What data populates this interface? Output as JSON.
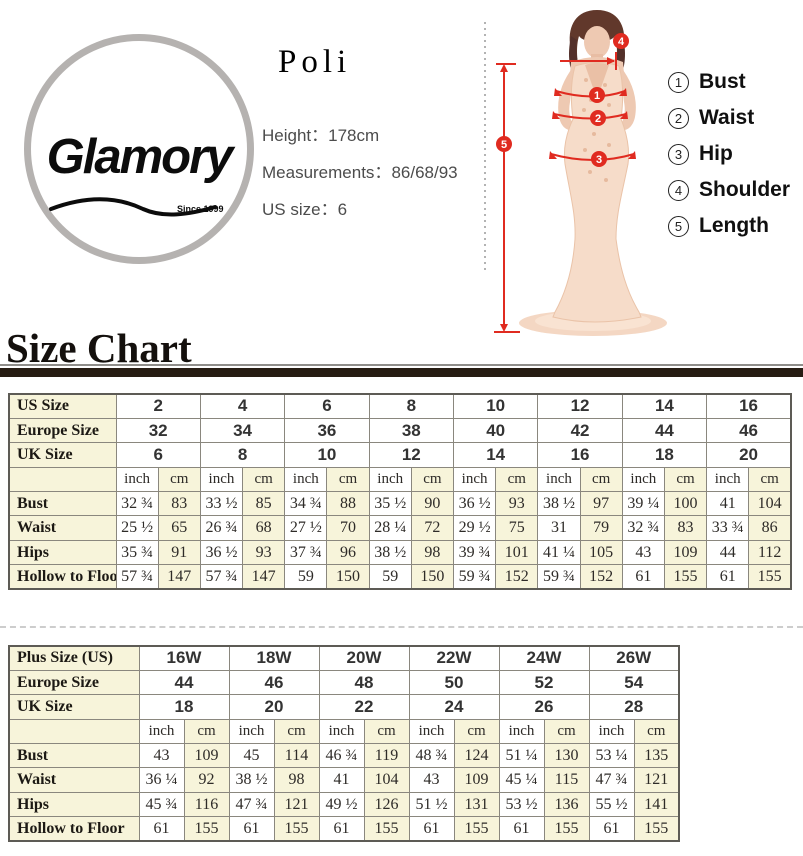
{
  "brand": {
    "name": "Glamory",
    "since": "Since 1999"
  },
  "product": {
    "name": "Poli",
    "height_label": "Height：",
    "height_value": "178cm",
    "measurements_label": "Measurements：",
    "measurements_value": "86/68/93",
    "us_size_label": "US size：",
    "us_size_value": "6"
  },
  "legend": {
    "items": [
      {
        "num": "1",
        "label": "Bust"
      },
      {
        "num": "2",
        "label": "Waist"
      },
      {
        "num": "3",
        "label": "Hip"
      },
      {
        "num": "4",
        "label": "Shoulder"
      },
      {
        "num": "5",
        "label": "Length"
      }
    ]
  },
  "model": {
    "markers": {
      "bust": "1",
      "waist": "2",
      "hip": "3",
      "shoulder": "4",
      "length": "5"
    }
  },
  "section_title": "Size Chart",
  "colors": {
    "accent_red": "#e02b20",
    "cream": "#f7f4da",
    "bar_dark": "#271c13"
  },
  "units": [
    "inch",
    "cm"
  ],
  "table1": {
    "header_rows": [
      {
        "label": "US Size",
        "values": [
          "2",
          "4",
          "6",
          "8",
          "10",
          "12",
          "14",
          "16"
        ]
      },
      {
        "label": "Europe Size",
        "values": [
          "32",
          "34",
          "36",
          "38",
          "40",
          "42",
          "44",
          "46"
        ]
      },
      {
        "label": "UK Size",
        "values": [
          "6",
          "8",
          "10",
          "12",
          "14",
          "16",
          "18",
          "20"
        ]
      }
    ],
    "rows": [
      {
        "label": "Bust",
        "values": [
          "32 ¾",
          "83",
          "33 ½",
          "85",
          "34 ¾",
          "88",
          "35 ½",
          "90",
          "36 ½",
          "93",
          "38 ½",
          "97",
          "39 ¼",
          "100",
          "41",
          "104"
        ]
      },
      {
        "label": "Waist",
        "values": [
          "25 ½",
          "65",
          "26 ¾",
          "68",
          "27 ½",
          "70",
          "28 ¼",
          "72",
          "29 ½",
          "75",
          "31",
          "79",
          "32 ¾",
          "83",
          "33 ¾",
          "86"
        ]
      },
      {
        "label": "Hips",
        "values": [
          "35 ¾",
          "91",
          "36 ½",
          "93",
          "37 ¾",
          "96",
          "38 ½",
          "98",
          "39 ¾",
          "101",
          "41 ¼",
          "105",
          "43",
          "109",
          "44",
          "112"
        ]
      },
      {
        "label": "Hollow to Floor",
        "values": [
          "57 ¾",
          "147",
          "57 ¾",
          "147",
          "59",
          "150",
          "59",
          "150",
          "59 ¾",
          "152",
          "59 ¾",
          "152",
          "61",
          "155",
          "61",
          "155"
        ]
      }
    ]
  },
  "table2": {
    "header_rows": [
      {
        "label": "Plus Size (US)",
        "values": [
          "16W",
          "18W",
          "20W",
          "22W",
          "24W",
          "26W"
        ]
      },
      {
        "label": "Europe Size",
        "values": [
          "44",
          "46",
          "48",
          "50",
          "52",
          "54"
        ]
      },
      {
        "label": "UK Size",
        "values": [
          "18",
          "20",
          "22",
          "24",
          "26",
          "28"
        ]
      }
    ],
    "rows": [
      {
        "label": "Bust",
        "values": [
          "43",
          "109",
          "45",
          "114",
          "46 ¾",
          "119",
          "48 ¾",
          "124",
          "51 ¼",
          "130",
          "53 ¼",
          "135"
        ]
      },
      {
        "label": "Waist",
        "values": [
          "36 ¼",
          "92",
          "38 ½",
          "98",
          "41",
          "104",
          "43",
          "109",
          "45 ¼",
          "115",
          "47 ¾",
          "121"
        ]
      },
      {
        "label": "Hips",
        "values": [
          "45 ¾",
          "116",
          "47 ¾",
          "121",
          "49 ½",
          "126",
          "51 ½",
          "131",
          "53 ½",
          "136",
          "55 ½",
          "141"
        ]
      },
      {
        "label": "Hollow to Floor",
        "values": [
          "61",
          "155",
          "61",
          "155",
          "61",
          "155",
          "61",
          "155",
          "61",
          "155",
          "61",
          "155"
        ]
      }
    ]
  }
}
